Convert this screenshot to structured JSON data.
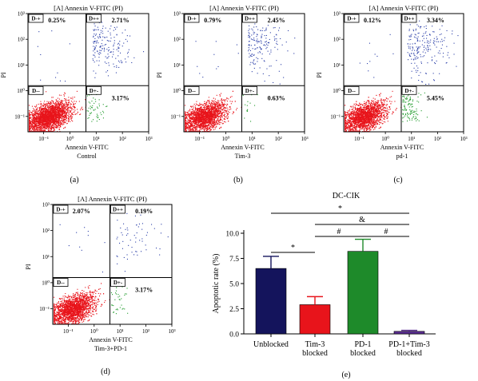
{
  "flow_panels": [
    {
      "letter": "(a)",
      "title": "[A] Annexin V-FITC (PI)",
      "xlabel": "Annexin V-FITC",
      "condition": "Control",
      "ylabel": "PI",
      "quadrant_labels": {
        "ul": "D-+",
        "ur": "D++",
        "ll": "D--",
        "lr": "D+-"
      },
      "percentages": {
        "ul": "0.25%",
        "ur": "2.71%",
        "lr": "3.17%"
      }
    },
    {
      "letter": "(b)",
      "title": "[A] Annexin V-FITC (PI)",
      "xlabel": "Annexin V-FITC",
      "condition": "Tim-3",
      "ylabel": "PI",
      "quadrant_labels": {
        "ul": "D-+",
        "ur": "D++",
        "ll": "D--",
        "lr": "D+-"
      },
      "percentages": {
        "ul": "0.79%",
        "ur": "2.45%",
        "lr": "0.63%"
      }
    },
    {
      "letter": "(c)",
      "title": "[A] Annexin V-FITC (PI)",
      "xlabel": "Annexin V-FITC",
      "condition": "pd-1",
      "ylabel": "PI",
      "quadrant_labels": {
        "ul": "D-+",
        "ur": "D++",
        "ll": "D--",
        "lr": "D+-"
      },
      "percentages": {
        "ul": "0.12%",
        "ur": "3.34%",
        "lr": "5.45%"
      }
    },
    {
      "letter": "(d)",
      "title": "[A] Annexin V-FITC (PI)",
      "xlabel": "Annexin V-FITC",
      "condition": "Tim-3+PD-1",
      "ylabel": "PI",
      "quadrant_labels": {
        "ul": "D-+",
        "ur": "D++",
        "ll": "D--",
        "lr": "D+-"
      },
      "percentages": {
        "ul": "2.07%",
        "ur": "0.19%",
        "lr": "3.17%"
      }
    }
  ],
  "tick_labels": {
    "x": [
      "10⁻¹",
      "10⁰",
      "10¹",
      "10²",
      "10³"
    ],
    "y": [
      "10⁻¹",
      "10⁰",
      "10¹",
      "10²",
      "10³"
    ]
  },
  "colors": {
    "live": "#e8141b",
    "early": "#1f9a2a",
    "late": "#2b3fa8"
  },
  "bar_panel": {
    "letter": "(e)",
    "significance": [
      "*",
      "&",
      "#",
      "#",
      "*"
    ]
  },
  "chart_data": {
    "type": "bar",
    "title": "DC-CIK",
    "ylabel": "Apoptotic rate (%)",
    "xlabel": "",
    "categories": [
      "Unblocked",
      "Tim-3 blocked",
      "PD-1 blocked",
      "PD-1+Tim-3 blocked"
    ],
    "values": [
      6.5,
      2.9,
      8.2,
      0.25
    ],
    "errors": [
      1.2,
      0.8,
      1.2,
      0.1
    ],
    "colors": [
      "#14145c",
      "#e8141b",
      "#1e8a2a",
      "#5a2d91"
    ],
    "ylim": [
      0,
      10
    ],
    "yticks": [
      "0.0",
      "2.5",
      "5.0",
      "7.5",
      "10.0"
    ],
    "grid": false
  }
}
